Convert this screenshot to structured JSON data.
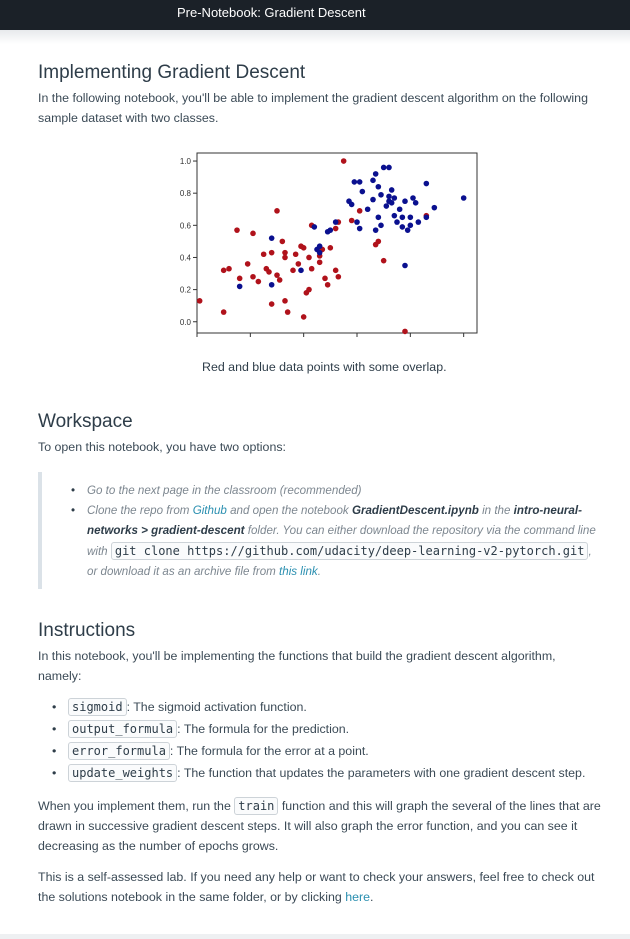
{
  "header": {
    "title": "Pre-Notebook: Gradient Descent"
  },
  "section1": {
    "heading": "Implementing Gradient Descent",
    "intro": "In the following notebook, you'll be able to implement the gradient descent algorithm on the following sample dataset with two classes.",
    "caption": "Red and blue data points with some overlap."
  },
  "chart_data": {
    "type": "scatter",
    "xlim": [
      0,
      1.05
    ],
    "ylim": [
      -0.07,
      1.05
    ],
    "xticks": [
      "0.0",
      "0.2",
      "0.4",
      "0.6",
      "0.8",
      "1.0"
    ],
    "yticks": [
      "0.0",
      "0.2",
      "0.4",
      "0.6",
      "0.8",
      "1.0"
    ],
    "grid": false,
    "series": [
      {
        "color": "#b0121b",
        "points": [
          [
            0.01,
            0.13
          ],
          [
            0.1,
            0.06
          ],
          [
            0.1,
            0.32
          ],
          [
            0.12,
            0.33
          ],
          [
            0.15,
            0.57
          ],
          [
            0.16,
            0.27
          ],
          [
            0.19,
            0.36
          ],
          [
            0.21,
            0.28
          ],
          [
            0.21,
            0.55
          ],
          [
            0.23,
            0.25
          ],
          [
            0.25,
            0.42
          ],
          [
            0.26,
            0.33
          ],
          [
            0.27,
            0.31
          ],
          [
            0.28,
            0.11
          ],
          [
            0.28,
            0.43
          ],
          [
            0.3,
            0.29
          ],
          [
            0.3,
            0.69
          ],
          [
            0.31,
            0.26
          ],
          [
            0.32,
            0.5
          ],
          [
            0.33,
            0.13
          ],
          [
            0.33,
            0.4
          ],
          [
            0.33,
            0.43
          ],
          [
            0.34,
            0.06
          ],
          [
            0.36,
            0.32
          ],
          [
            0.37,
            0.42
          ],
          [
            0.38,
            0.36
          ],
          [
            0.39,
            0.47
          ],
          [
            0.4,
            0.03
          ],
          [
            0.4,
            0.46
          ],
          [
            0.41,
            0.18
          ],
          [
            0.42,
            0.4
          ],
          [
            0.42,
            0.2
          ],
          [
            0.43,
            0.33
          ],
          [
            0.43,
            0.6
          ],
          [
            0.46,
            0.41
          ],
          [
            0.47,
            0.45
          ],
          [
            0.48,
            0.27
          ],
          [
            0.49,
            0.23
          ],
          [
            0.5,
            0.46
          ],
          [
            0.52,
            0.32
          ],
          [
            0.53,
            0.28
          ],
          [
            0.52,
            0.58
          ],
          [
            0.53,
            0.62
          ],
          [
            0.55,
            1.0
          ],
          [
            0.58,
            0.63
          ],
          [
            0.61,
            0.69
          ],
          [
            0.67,
            0.48
          ],
          [
            0.68,
            0.5
          ],
          [
            0.7,
            0.38
          ],
          [
            0.78,
            -0.06
          ],
          [
            0.86,
            0.66
          ],
          [
            0.46,
            0.37
          ]
        ]
      },
      {
        "color": "#0a108f",
        "points": [
          [
            0.16,
            0.22
          ],
          [
            0.28,
            0.52
          ],
          [
            0.28,
            0.23
          ],
          [
            0.39,
            0.32
          ],
          [
            0.44,
            0.59
          ],
          [
            0.45,
            0.45
          ],
          [
            0.46,
            0.47
          ],
          [
            0.46,
            0.43
          ],
          [
            0.49,
            0.56
          ],
          [
            0.5,
            0.57
          ],
          [
            0.52,
            0.62
          ],
          [
            0.57,
            0.75
          ],
          [
            0.58,
            0.73
          ],
          [
            0.59,
            0.87
          ],
          [
            0.6,
            0.62
          ],
          [
            0.61,
            0.87
          ],
          [
            0.61,
            0.58
          ],
          [
            0.62,
            0.81
          ],
          [
            0.64,
            0.7
          ],
          [
            0.66,
            0.76
          ],
          [
            0.66,
            0.88
          ],
          [
            0.67,
            0.57
          ],
          [
            0.67,
            0.92
          ],
          [
            0.68,
            0.84
          ],
          [
            0.68,
            0.65
          ],
          [
            0.69,
            0.6
          ],
          [
            0.69,
            0.79
          ],
          [
            0.7,
            0.96
          ],
          [
            0.71,
            0.72
          ],
          [
            0.72,
            0.96
          ],
          [
            0.72,
            0.78
          ],
          [
            0.72,
            0.75
          ],
          [
            0.73,
            0.74
          ],
          [
            0.73,
            0.82
          ],
          [
            0.74,
            0.77
          ],
          [
            0.74,
            0.66
          ],
          [
            0.75,
            0.62
          ],
          [
            0.76,
            0.7
          ],
          [
            0.77,
            0.65
          ],
          [
            0.77,
            0.59
          ],
          [
            0.78,
            0.75
          ],
          [
            0.79,
            0.57
          ],
          [
            0.8,
            0.6
          ],
          [
            0.8,
            0.65
          ],
          [
            0.81,
            0.77
          ],
          [
            0.82,
            0.74
          ],
          [
            0.83,
            0.62
          ],
          [
            0.86,
            0.65
          ],
          [
            0.86,
            0.86
          ],
          [
            0.89,
            0.71
          ],
          [
            1.0,
            0.77
          ],
          [
            0.78,
            0.35
          ]
        ]
      }
    ]
  },
  "section2": {
    "heading": "Workspace",
    "intro": "To open this notebook, you have two options:",
    "option1": "Go to the next page in the classroom (recommended)",
    "option2": {
      "t1": "Clone the repo from ",
      "github": "Github",
      "t2": " and open the notebook ",
      "file": "GradientDescent.ipynb",
      "t3": " in the ",
      "folder": "intro-neural-networks > gradient-descent",
      "t4": " folder. You can either download the repository via the command line with ",
      "cmd": "git clone https://github.com/udacity/deep-learning-v2-pytorch.git",
      "t5": ", or download it as an archive file from ",
      "link": "this link",
      "t6": "."
    }
  },
  "section3": {
    "heading": "Instructions",
    "intro": "In this notebook, you'll be implementing the functions that build the gradient descent algorithm, namely:",
    "items": [
      {
        "code": "sigmoid",
        "desc": ": The sigmoid activation function."
      },
      {
        "code": "output_formula",
        "desc": ": The formula for the prediction."
      },
      {
        "code": "error_formula",
        "desc": ": The formula for the error at a point."
      },
      {
        "code": "update_weights",
        "desc": ": The function that updates the parameters with one gradient descent step."
      }
    ],
    "run_t1": "When you implement them, run the ",
    "run_code": "train",
    "run_t2": " function and this will graph the several of the lines that are drawn in successive gradient descent steps. It will also graph the error function, and you can see it decreasing as the number of epochs grows.",
    "self_t1": "This is a self-assessed lab. If you need any help or want to check your answers, feel free to check out the solutions notebook in the same folder, or by clicking ",
    "self_link": "here",
    "self_t2": "."
  }
}
